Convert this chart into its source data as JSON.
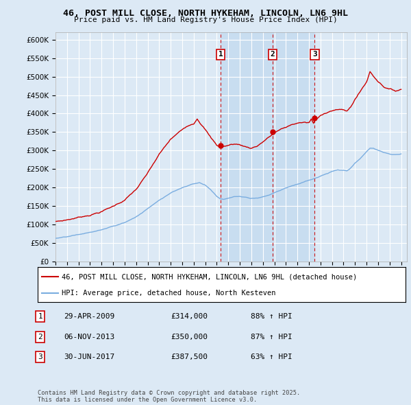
{
  "title": "46, POST MILL CLOSE, NORTH HYKEHAM, LINCOLN, LN6 9HL",
  "subtitle": "Price paid vs. HM Land Registry's House Price Index (HPI)",
  "legend_line1": "46, POST MILL CLOSE, NORTH HYKEHAM, LINCOLN, LN6 9HL (detached house)",
  "legend_line2": "HPI: Average price, detached house, North Kesteven",
  "purchases": [
    {
      "label": "1",
      "date_num": 2009.33,
      "price": 314000,
      "text": "29-APR-2009",
      "amount": "£314,000",
      "hpi_pct": "88% ↑ HPI"
    },
    {
      "label": "2",
      "date_num": 2013.85,
      "price": 350000,
      "text": "06-NOV-2013",
      "amount": "£350,000",
      "hpi_pct": "87% ↑ HPI"
    },
    {
      "label": "3",
      "date_num": 2017.5,
      "price": 387500,
      "text": "30-JUN-2017",
      "amount": "£387,500",
      "hpi_pct": "63% ↑ HPI"
    }
  ],
  "background_color": "#dce9f5",
  "plot_background": "#dce9f5",
  "shade_color": "#c8ddf0",
  "red_color": "#cc0000",
  "blue_color": "#7aade0",
  "grid_color": "#ffffff",
  "ylim": [
    0,
    620000
  ],
  "xlim_left": 1995.0,
  "xlim_right": 2025.5,
  "copyright": "Contains HM Land Registry data © Crown copyright and database right 2025.\nThis data is licensed under the Open Government Licence v3.0."
}
